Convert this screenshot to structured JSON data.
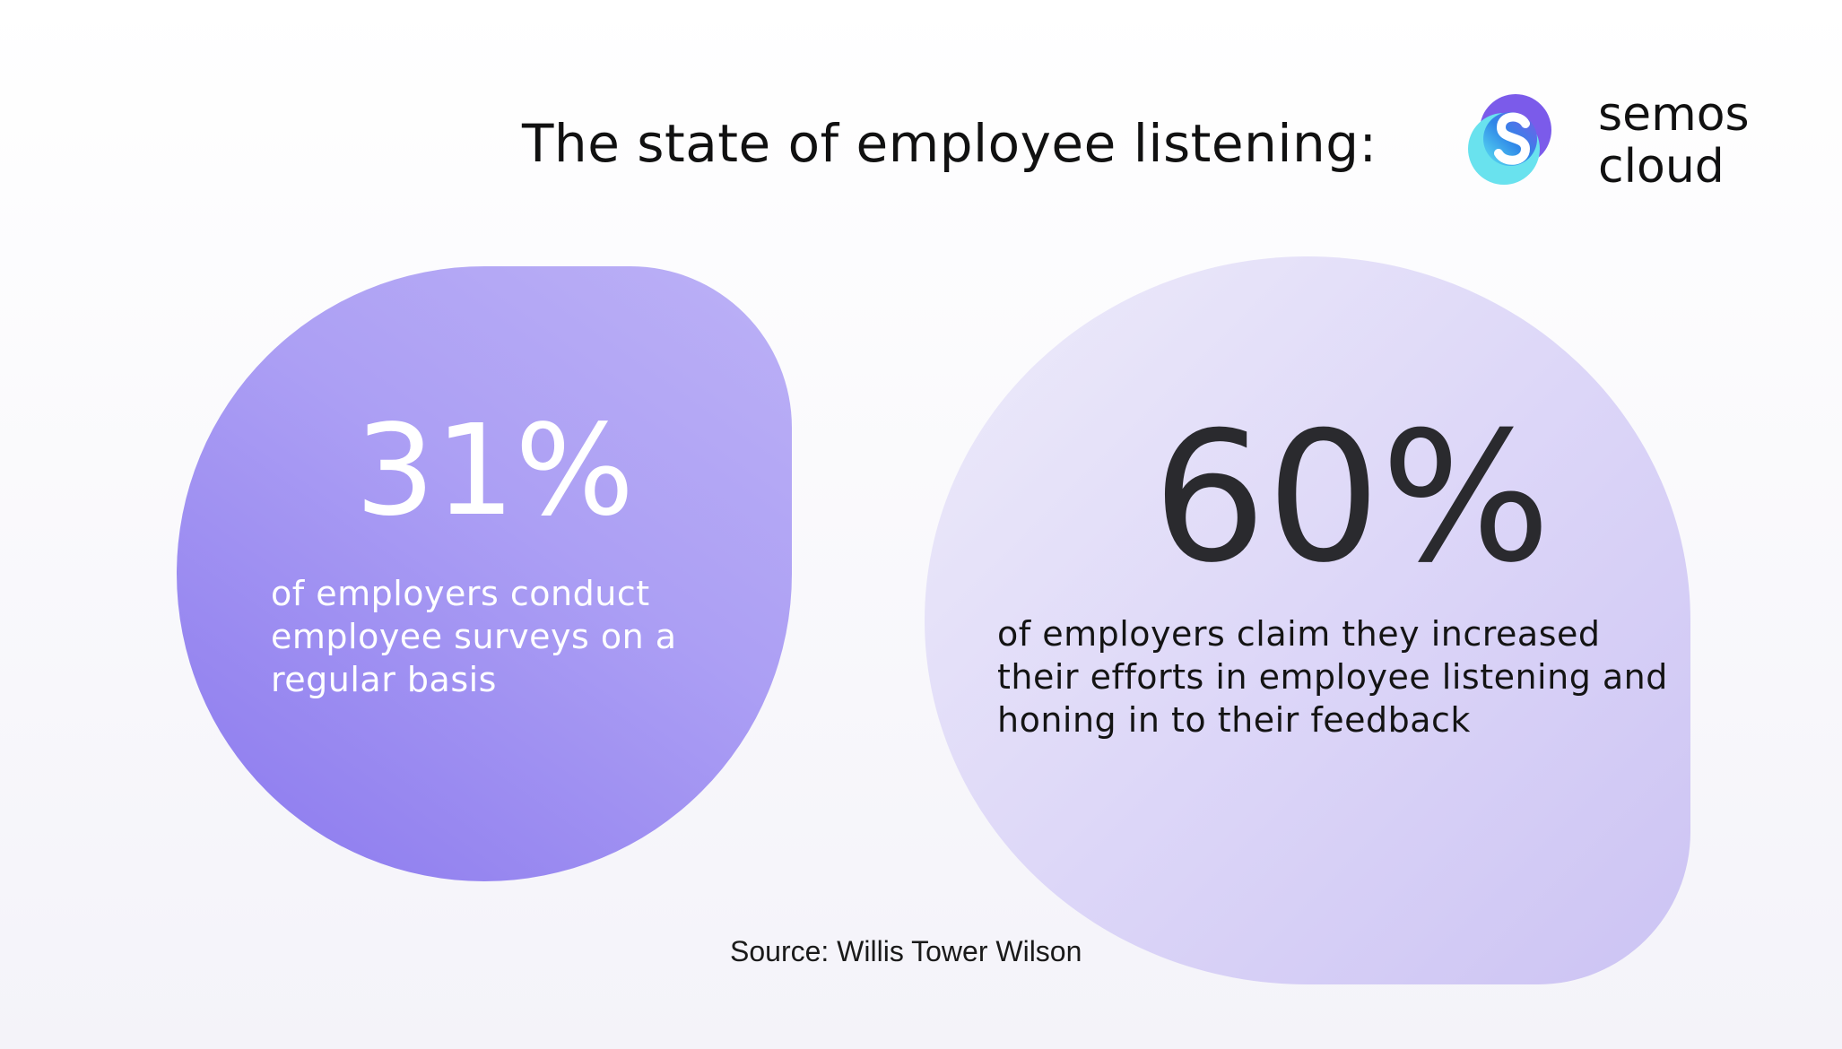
{
  "header": {
    "title": "The state of employee listening:"
  },
  "logo": {
    "line1": "semos",
    "line2": "cloud",
    "icon": "semos-cloud-s-icon",
    "colors": {
      "purple": "#7b5bea",
      "blue": "#2f86e8",
      "cyan": "#6ee2ee"
    }
  },
  "stats": [
    {
      "value": "31%",
      "description": "of employers conduct employee surveys on  a regular basis",
      "color": "#8a78ee"
    },
    {
      "value": "60%",
      "description": "of employers claim they increased their efforts in employee listening and honing in to their feedback",
      "color": "#d8d1f7"
    }
  ],
  "footer": {
    "source": "Source: Willis Tower Wilson"
  }
}
